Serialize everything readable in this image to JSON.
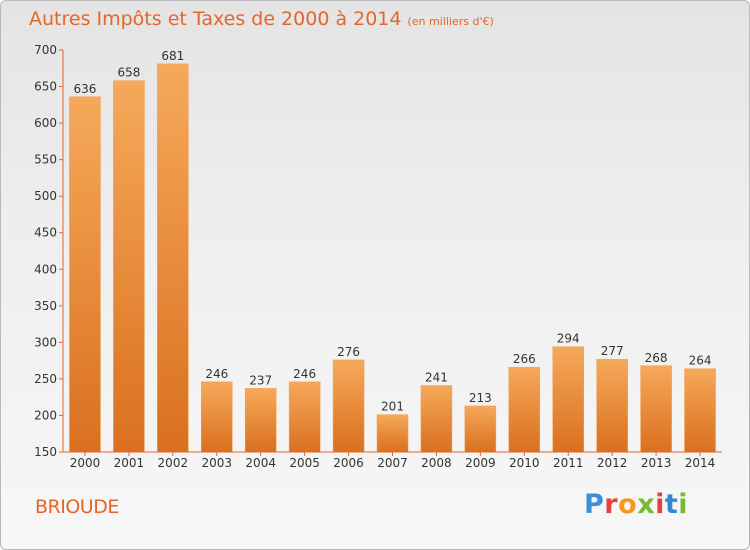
{
  "title": "Autres Impôts et Taxes de 2000 à 2014",
  "subtitle": "(en milliers d'€)",
  "commune": "BRIOUDE",
  "logo": "Proxiti",
  "colors": {
    "accent": "#e4662a",
    "bar_top": "#f6a95a",
    "bar_bottom": "#d9701f",
    "axis": "#e4662a"
  },
  "chart_data": {
    "type": "bar",
    "title": "Autres Impôts et Taxes de 2000 à 2014",
    "subtitle": "(en milliers d'€)",
    "categories": [
      "2000",
      "2001",
      "2002",
      "2003",
      "2004",
      "2005",
      "2006",
      "2007",
      "2008",
      "2009",
      "2010",
      "2011",
      "2012",
      "2013",
      "2014"
    ],
    "values": [
      636,
      658,
      681,
      246,
      237,
      246,
      276,
      201,
      241,
      213,
      266,
      294,
      277,
      268,
      264
    ],
    "ylim": [
      150,
      700
    ],
    "yticks": [
      150,
      200,
      250,
      300,
      350,
      400,
      450,
      500,
      550,
      600,
      650,
      700
    ],
    "grid": false
  }
}
